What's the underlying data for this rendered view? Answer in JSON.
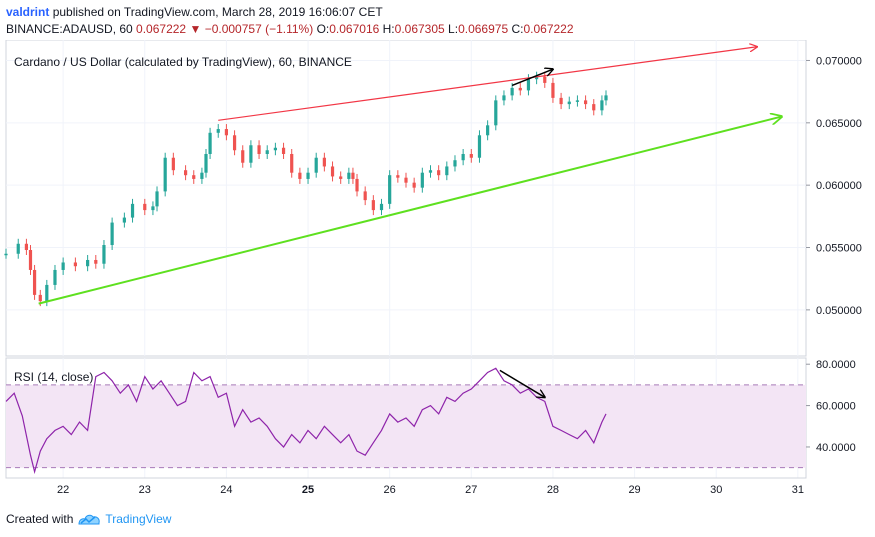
{
  "header": {
    "user": "valdrint",
    "published_text": "published on TradingView.com, March 28, 2019 16:06:07 CET",
    "symbol": "BINANCE:ADAUSD, 60",
    "last": "0.067222",
    "change_arrow": "▼",
    "change": "−0.000757 (−1.11%)",
    "o_label": "O:",
    "o_value": "0.067016",
    "h_label": "H:",
    "h_value": "0.067305",
    "l_label": "L:",
    "l_value": "0.066975",
    "c_label": "C:",
    "c_value": "0.067222"
  },
  "footer": {
    "created_with": "Created with",
    "brand": "TradingView",
    "logo_icon": "tradingview-cloud-icon"
  },
  "colors": {
    "up": "#26a69a",
    "down": "#ef5350",
    "red_line": "#f23645",
    "green_line": "#5ee01f",
    "rsi_line": "#8e24aa",
    "rsi_band": "#f3e5f5"
  },
  "chart_data": [
    {
      "type": "candlestick",
      "title": "Cardano / US Dollar (calculated by TradingView), 60, BINANCE",
      "x_ticks": [
        "22",
        "23",
        "24",
        "25",
        "26",
        "27",
        "28",
        "29",
        "30",
        "31"
      ],
      "x_range_days": [
        21.3,
        31.1
      ],
      "y_ticks": [
        "0.070000",
        "0.065000",
        "0.060000",
        "0.055000",
        "0.050000"
      ],
      "ylim": [
        0.0463,
        0.071
      ],
      "close_series": [
        [
          21.3,
          0.0545
        ],
        [
          21.45,
          0.0553
        ],
        [
          21.55,
          0.0548
        ],
        [
          21.6,
          0.0532
        ],
        [
          21.65,
          0.0512
        ],
        [
          21.72,
          0.0507
        ],
        [
          21.8,
          0.052
        ],
        [
          21.9,
          0.0532
        ],
        [
          22.0,
          0.0538
        ],
        [
          22.15,
          0.0535
        ],
        [
          22.3,
          0.054
        ],
        [
          22.4,
          0.0537
        ],
        [
          22.5,
          0.0552
        ],
        [
          22.6,
          0.057
        ],
        [
          22.75,
          0.0574
        ],
        [
          22.85,
          0.0585
        ],
        [
          23.0,
          0.058
        ],
        [
          23.1,
          0.0583
        ],
        [
          23.15,
          0.0595
        ],
        [
          23.25,
          0.0622
        ],
        [
          23.35,
          0.0612
        ],
        [
          23.5,
          0.0608
        ],
        [
          23.6,
          0.0605
        ],
        [
          23.7,
          0.061
        ],
        [
          23.75,
          0.0625
        ],
        [
          23.8,
          0.0642
        ],
        [
          23.9,
          0.0645
        ],
        [
          24.0,
          0.064
        ],
        [
          24.1,
          0.0628
        ],
        [
          24.2,
          0.0618
        ],
        [
          24.3,
          0.0632
        ],
        [
          24.4,
          0.0625
        ],
        [
          24.5,
          0.0628
        ],
        [
          24.6,
          0.063
        ],
        [
          24.7,
          0.0625
        ],
        [
          24.8,
          0.061
        ],
        [
          24.9,
          0.0605
        ],
        [
          25.0,
          0.061
        ],
        [
          25.1,
          0.0622
        ],
        [
          25.2,
          0.0615
        ],
        [
          25.3,
          0.0607
        ],
        [
          25.4,
          0.0605
        ],
        [
          25.5,
          0.061
        ],
        [
          25.55,
          0.0605
        ],
        [
          25.6,
          0.0595
        ],
        [
          25.7,
          0.0588
        ],
        [
          25.8,
          0.058
        ],
        [
          25.9,
          0.0585
        ],
        [
          26.0,
          0.0608
        ],
        [
          26.1,
          0.0606
        ],
        [
          26.2,
          0.0602
        ],
        [
          26.3,
          0.0598
        ],
        [
          26.4,
          0.061
        ],
        [
          26.5,
          0.0612
        ],
        [
          26.6,
          0.0608
        ],
        [
          26.7,
          0.0615
        ],
        [
          26.8,
          0.062
        ],
        [
          26.9,
          0.0625
        ],
        [
          27.0,
          0.0622
        ],
        [
          27.1,
          0.064
        ],
        [
          27.2,
          0.0648
        ],
        [
          27.3,
          0.0668
        ],
        [
          27.4,
          0.0672
        ],
        [
          27.5,
          0.0678
        ],
        [
          27.6,
          0.0676
        ],
        [
          27.7,
          0.0685
        ],
        [
          27.8,
          0.0687
        ],
        [
          27.9,
          0.0682
        ],
        [
          28.0,
          0.067
        ],
        [
          28.1,
          0.0665
        ],
        [
          28.2,
          0.0667
        ],
        [
          28.3,
          0.0668
        ],
        [
          28.4,
          0.0665
        ],
        [
          28.5,
          0.066
        ],
        [
          28.6,
          0.0668
        ],
        [
          28.65,
          0.0672
        ]
      ],
      "red_trendline": [
        [
          23.9,
          0.0652
        ],
        [
          30.5,
          0.0711
        ]
      ],
      "green_trendline": [
        [
          21.7,
          0.0505
        ],
        [
          30.8,
          0.0655
        ]
      ],
      "annotation_arrows": [
        {
          "from": [
            27.5,
            0.068
          ],
          "to": [
            28.0,
            0.0693
          ]
        }
      ]
    },
    {
      "type": "line",
      "title": "RSI (14, close)",
      "y_ticks": [
        "80.0000",
        "60.0000",
        "40.0000"
      ],
      "ylim": [
        25,
        83
      ],
      "band": [
        30,
        70
      ],
      "series": [
        {
          "x": [
            21.3,
            21.4,
            21.5,
            21.6,
            21.65,
            21.72,
            21.8,
            21.9,
            22.0,
            22.1,
            22.2,
            22.3,
            22.4,
            22.5,
            22.6,
            22.7,
            22.8,
            22.9,
            23.0,
            23.1,
            23.2,
            23.3,
            23.4,
            23.5,
            23.6,
            23.7,
            23.8,
            23.9,
            24.0,
            24.1,
            24.2,
            24.3,
            24.4,
            24.5,
            24.6,
            24.7,
            24.8,
            24.9,
            25.0,
            25.1,
            25.2,
            25.3,
            25.4,
            25.5,
            25.6,
            25.7,
            25.8,
            25.9,
            26.0,
            26.1,
            26.2,
            26.3,
            26.4,
            26.5,
            26.6,
            26.7,
            26.8,
            26.9,
            27.0,
            27.1,
            27.2,
            27.3,
            27.4,
            27.5,
            27.6,
            27.7,
            27.8,
            27.9,
            28.0,
            28.1,
            28.2,
            28.3,
            28.4,
            28.5,
            28.6,
            28.65
          ],
          "values": [
            62,
            66,
            55,
            36,
            28,
            38,
            44,
            48,
            50,
            46,
            52,
            48,
            74,
            76,
            72,
            66,
            70,
            62,
            74,
            68,
            72,
            66,
            60,
            62,
            76,
            72,
            74,
            64,
            66,
            50,
            58,
            52,
            54,
            50,
            44,
            40,
            46,
            42,
            48,
            44,
            50,
            46,
            42,
            46,
            38,
            36,
            42,
            48,
            56,
            52,
            54,
            50,
            58,
            60,
            56,
            64,
            62,
            66,
            68,
            72,
            76,
            78,
            72,
            70,
            66,
            68,
            64,
            62,
            50,
            48,
            46,
            44,
            48,
            42,
            52,
            56
          ]
        }
      ],
      "annotation_arrows": [
        {
          "from": [
            27.35,
            77
          ],
          "to": [
            27.9,
            64
          ]
        }
      ]
    }
  ]
}
